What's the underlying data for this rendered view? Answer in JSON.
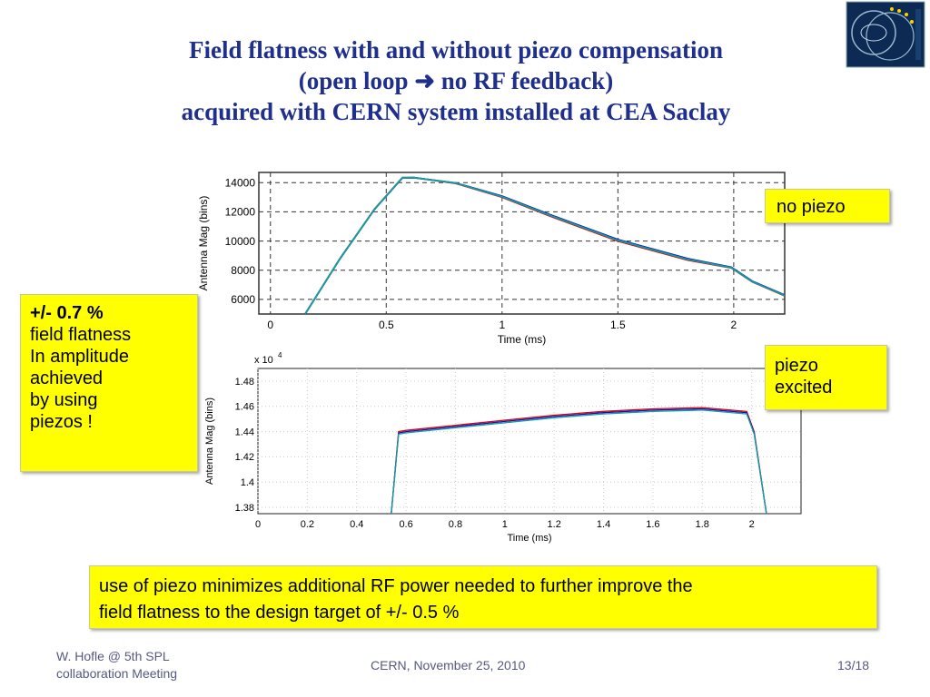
{
  "title": {
    "line1": "Field flatness with and without piezo compensation",
    "line2_a": "(open loop",
    "line2_b": "no RF feedback)",
    "line3": "acquired with CERN system installed at CEA Saclay"
  },
  "callouts": {
    "no_piezo": "no piezo",
    "piezo_excited": [
      "piezo",
      "excited"
    ],
    "flatness": [
      "+/- 0.7 %",
      "field flatness",
      "In amplitude",
      "achieved",
      "by using",
      "piezos !"
    ],
    "bottom": [
      "use of piezo minimizes additional RF power needed to further improve the",
      "field flatness to the design target of +/- 0.5 %"
    ]
  },
  "footer": {
    "author": [
      "W. Hofle @ 5th SPL",
      "collaboration Meeting"
    ],
    "center": "CERN, November 25, 2010",
    "page": "13/18"
  },
  "colors": {
    "title": "#1f2f8c",
    "callout": "#ffff00",
    "trace_red": "#e00000",
    "trace_blue": "#1010c0",
    "trace_teal": "#10a0a0"
  },
  "chart_data": [
    {
      "type": "line",
      "title": "no piezo",
      "xlabel": "Time (ms)",
      "ylabel": "Antenna Mag (bins)",
      "xlim": [
        -0.05,
        2.22
      ],
      "ylim": [
        5000,
        14700
      ],
      "xticks": [
        "0",
        "0.5",
        "1",
        "1.5",
        "2"
      ],
      "xtick_values": [
        0,
        0.5,
        1,
        1.5,
        2
      ],
      "yticks": [
        "6000",
        "8000",
        "10000",
        "12000",
        "14000"
      ],
      "ytick_values": [
        6000,
        8000,
        10000,
        12000,
        14000
      ],
      "grid": true,
      "series": [
        {
          "color": "#e00000",
          "x": [
            0.15,
            0.3,
            0.45,
            0.57,
            0.62,
            0.8,
            1.0,
            1.2,
            1.5,
            1.8,
            1.99,
            2.08,
            2.22
          ],
          "y": [
            5000,
            8800,
            12200,
            14350,
            14350,
            13950,
            13000,
            11750,
            10000,
            8700,
            8150,
            7200,
            6250
          ]
        },
        {
          "color": "#1010c0",
          "x": [
            0.15,
            0.3,
            0.45,
            0.57,
            0.62,
            0.8,
            1.0,
            1.2,
            1.5,
            1.8,
            1.99,
            2.08,
            2.22
          ],
          "y": [
            5000,
            8780,
            12180,
            14330,
            14340,
            13980,
            13080,
            11850,
            10100,
            8800,
            8200,
            7250,
            6300
          ]
        },
        {
          "color": "#10a0a0",
          "x": [
            0.15,
            0.3,
            0.45,
            0.57,
            0.62,
            0.8,
            1.0,
            1.2,
            1.5,
            1.8,
            1.99,
            2.08,
            2.22
          ],
          "y": [
            5000,
            8790,
            12190,
            14340,
            14345,
            13970,
            13040,
            11800,
            10050,
            8750,
            8170,
            7220,
            6270
          ]
        }
      ]
    },
    {
      "type": "line",
      "title": "piezo excited",
      "xlabel": "Time (ms)",
      "ylabel": "Antenna Mag (bins)",
      "scale_label": "x 10",
      "scale_exponent": "4",
      "xlim": [
        0,
        2.2
      ],
      "ylim": [
        1.375,
        1.49
      ],
      "xticks": [
        "0",
        "0.2",
        "0.4",
        "0.6",
        "0.8",
        "1",
        "1.2",
        "1.4",
        "1.6",
        "1.8",
        "2"
      ],
      "xtick_values": [
        0,
        0.2,
        0.4,
        0.6,
        0.8,
        1,
        1.2,
        1.4,
        1.6,
        1.8,
        2
      ],
      "yticks": [
        "1.38",
        "1.4",
        "1.42",
        "1.44",
        "1.46",
        "1.48"
      ],
      "ytick_values": [
        1.38,
        1.4,
        1.42,
        1.44,
        1.46,
        1.48
      ],
      "grid": true,
      "series": [
        {
          "color": "#e00000",
          "x": [
            0.54,
            0.57,
            0.6,
            0.8,
            1.0,
            1.2,
            1.4,
            1.6,
            1.8,
            1.98,
            2.01,
            2.06
          ],
          "y": [
            1.375,
            1.44,
            1.441,
            1.445,
            1.449,
            1.453,
            1.456,
            1.458,
            1.459,
            1.456,
            1.44,
            1.375
          ]
        },
        {
          "color": "#1010c0",
          "x": [
            0.54,
            0.57,
            0.6,
            0.8,
            1.0,
            1.2,
            1.4,
            1.6,
            1.8,
            1.98,
            2.01,
            2.06
          ],
          "y": [
            1.375,
            1.439,
            1.44,
            1.444,
            1.448,
            1.452,
            1.455,
            1.457,
            1.458,
            1.455,
            1.439,
            1.375
          ]
        },
        {
          "color": "#10a0a0",
          "x": [
            0.54,
            0.57,
            0.6,
            0.8,
            1.0,
            1.2,
            1.4,
            1.6,
            1.8,
            1.98,
            2.01,
            2.06
          ],
          "y": [
            1.375,
            1.438,
            1.439,
            1.443,
            1.447,
            1.451,
            1.454,
            1.456,
            1.457,
            1.454,
            1.438,
            1.375
          ]
        }
      ]
    }
  ]
}
